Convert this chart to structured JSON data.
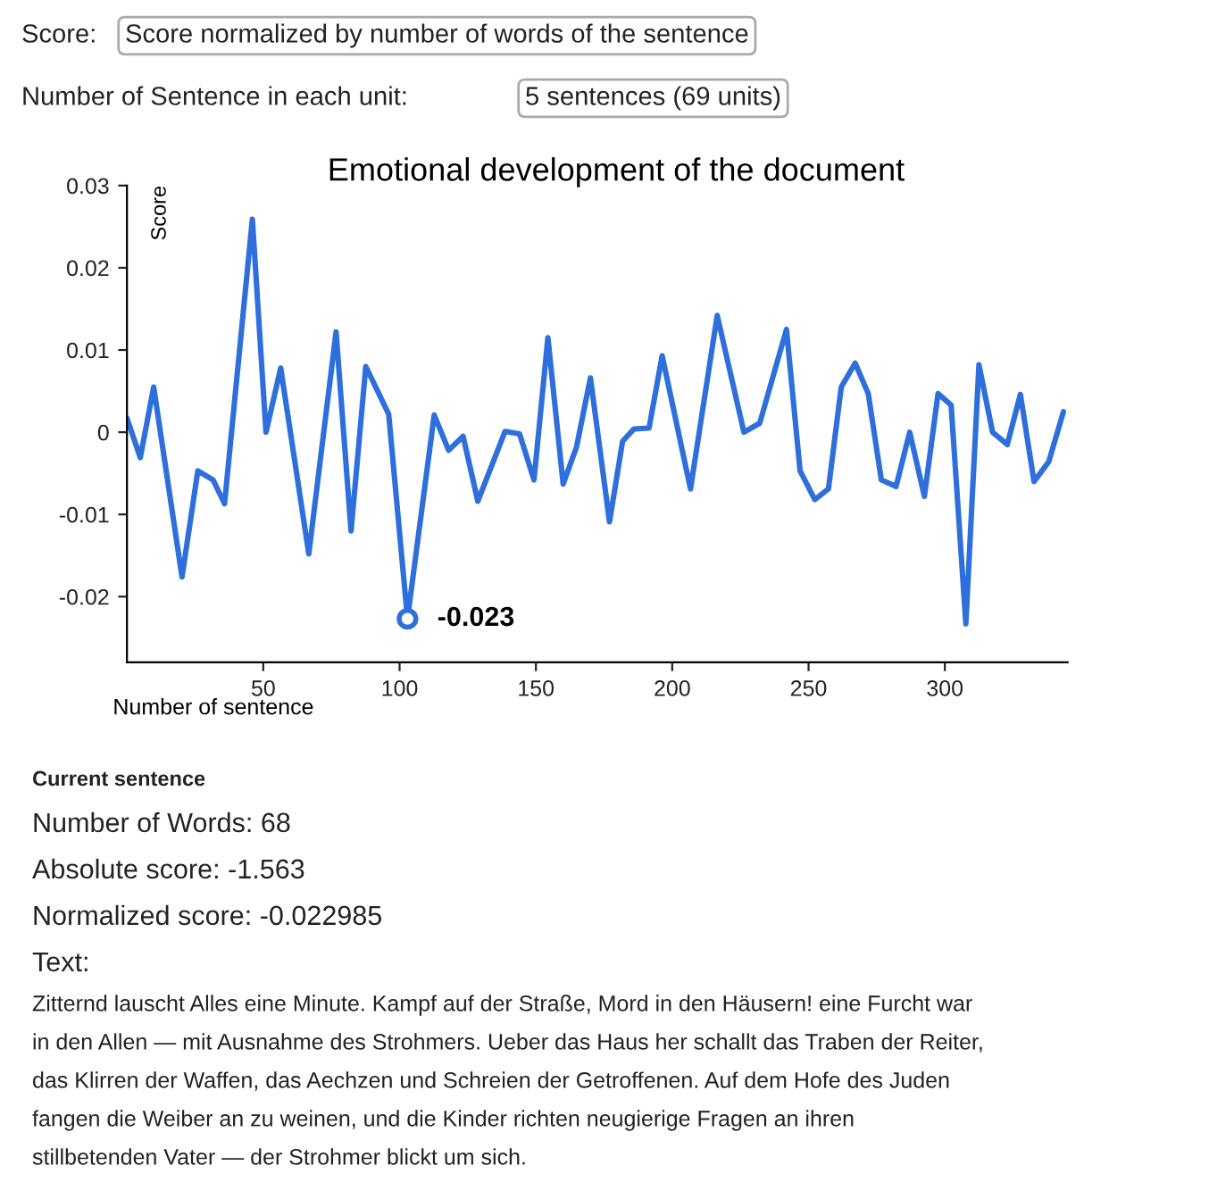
{
  "chart_data": {
    "type": "line",
    "title": "Emotional development of the document",
    "xlabel": "Number of sentence",
    "ylabel": "Score",
    "xlim": [
      0,
      345
    ],
    "xticks": [
      50,
      100,
      150,
      200,
      250,
      300
    ],
    "ylim": [
      -0.028,
      0.03
    ],
    "yticks": [
      -0.02,
      -0.01,
      0,
      0.01,
      0.02,
      0.03
    ],
    "grid": false,
    "legend": false,
    "series": [
      {
        "color": "#2f6fdc",
        "marker": "none",
        "x": [
          0,
          4.9,
          9.8,
          20.2,
          26,
          31.6,
          35.8,
          46,
          51,
          56.4,
          66.7,
          76.7,
          82.2,
          87.6,
          96,
          102.9,
          112.7,
          118,
          123.3,
          128.7,
          138.7,
          144,
          149.3,
          154.4,
          160,
          164.9,
          170,
          177,
          181.8,
          186,
          191.5,
          196.3,
          206.7,
          216.5,
          226.3,
          232.1,
          241.9,
          246.9,
          252.3,
          257.3,
          262,
          267.1,
          271.9,
          276.7,
          282.1,
          287.1,
          292.5,
          297.5,
          302.3,
          307.7,
          312.5,
          317.5,
          322.9,
          327.7,
          332.7,
          338.1,
          343.5
        ],
        "values": [
          0.0017,
          -0.0031,
          0.0055,
          -0.0176,
          -0.0047,
          -0.0058,
          -0.0087,
          0.0259,
          0.0,
          0.0078,
          -0.0148,
          0.0122,
          -0.012,
          0.008,
          0.0022,
          -0.0227,
          0.0021,
          -0.0022,
          -0.0005,
          -0.0084,
          0.0001,
          -0.0002,
          -0.0058,
          0.0115,
          -0.0063,
          -0.0018,
          0.0066,
          -0.0109,
          -0.0011,
          0.0004,
          0.0005,
          0.0093,
          -0.0069,
          0.0142,
          0.0,
          0.0011,
          0.0125,
          -0.0047,
          -0.0082,
          -0.0069,
          0.0055,
          0.0084,
          0.0047,
          -0.0058,
          -0.0066,
          0.0,
          -0.0078,
          0.0047,
          0.0033,
          -0.0233,
          0.0082,
          0.0,
          -0.0015,
          0.0046,
          -0.006,
          -0.0036,
          0.0025
        ]
      },
      {
        "type": "scatter",
        "color": "#2f6fdc",
        "marker": "circle",
        "x": [
          102.9
        ],
        "values": [
          -0.0227
        ],
        "value_labels": [
          "-0.023"
        ]
      }
    ],
    "annotations": [
      "Score:",
      "Score normalized by number of words of the sentence",
      "Number of Sentence in each unit:",
      "5 sentences (69 units)",
      "Current sentence",
      "Number of Words: 68",
      "Absolute score: -1.563",
      "Normalized score: -0.022985",
      "Text:",
      "Zitternd lauscht Alles eine Minute. Kampf auf der Straße, Mord in den Häusern! eine Furcht war",
      "in den Allen — mit Ausnahme des Strohmers. Ueber das Haus her schallt das Traben der Reiter,",
      "das Klirren der Waffen, das Aechzen und Schreien der Getroffenen. Auf dem Hofe des Juden",
      "fangen die Weiber an zu weinen, und die Kinder richten neugierige Fragen an ihren",
      "stillbetenden Vater — der Strohmer blickt um sich."
    ]
  }
}
